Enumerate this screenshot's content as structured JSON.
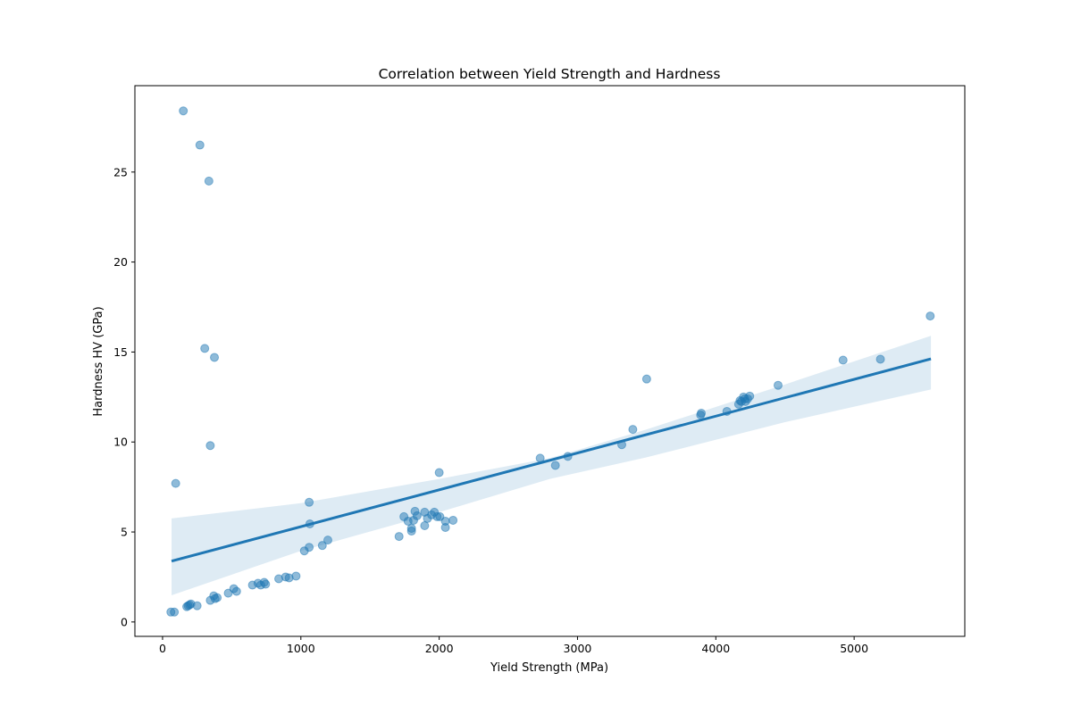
{
  "chart_data": {
    "type": "scatter",
    "title": "Correlation between Yield Strength and Hardness",
    "xlabel": "Yield Strength (MPa)",
    "ylabel": "Hardness HV (GPa)",
    "xlim": [
      -200,
      5800
    ],
    "ylim": [
      -0.8,
      29.8
    ],
    "xticks": [
      0,
      1000,
      2000,
      3000,
      4000,
      5000
    ],
    "yticks": [
      0,
      5,
      10,
      15,
      20,
      25
    ],
    "grid": false,
    "legend": "none",
    "colors": {
      "points": "#1f77b4",
      "points_opacity": 0.5,
      "regression_line": "#1f77b4",
      "confidence_band": "#1f77b4",
      "band_opacity": 0.15
    },
    "points": [
      {
        "x": 60,
        "y": 0.55
      },
      {
        "x": 85,
        "y": 0.55
      },
      {
        "x": 95,
        "y": 7.7
      },
      {
        "x": 150,
        "y": 28.4
      },
      {
        "x": 270,
        "y": 26.5
      },
      {
        "x": 335,
        "y": 24.5
      },
      {
        "x": 305,
        "y": 15.2
      },
      {
        "x": 375,
        "y": 14.7
      },
      {
        "x": 345,
        "y": 9.8
      },
      {
        "x": 175,
        "y": 0.85
      },
      {
        "x": 185,
        "y": 0.9
      },
      {
        "x": 195,
        "y": 0.95
      },
      {
        "x": 205,
        "y": 1.0
      },
      {
        "x": 250,
        "y": 0.9
      },
      {
        "x": 345,
        "y": 1.2
      },
      {
        "x": 370,
        "y": 1.45
      },
      {
        "x": 380,
        "y": 1.3
      },
      {
        "x": 395,
        "y": 1.35
      },
      {
        "x": 475,
        "y": 1.6
      },
      {
        "x": 515,
        "y": 1.85
      },
      {
        "x": 535,
        "y": 1.7
      },
      {
        "x": 650,
        "y": 2.05
      },
      {
        "x": 690,
        "y": 2.15
      },
      {
        "x": 710,
        "y": 2.05
      },
      {
        "x": 735,
        "y": 2.2
      },
      {
        "x": 745,
        "y": 2.1
      },
      {
        "x": 840,
        "y": 2.4
      },
      {
        "x": 890,
        "y": 2.5
      },
      {
        "x": 915,
        "y": 2.45
      },
      {
        "x": 965,
        "y": 2.55
      },
      {
        "x": 1025,
        "y": 3.95
      },
      {
        "x": 1060,
        "y": 4.15
      },
      {
        "x": 1155,
        "y": 4.25
      },
      {
        "x": 1195,
        "y": 4.55
      },
      {
        "x": 1065,
        "y": 5.45
      },
      {
        "x": 1060,
        "y": 6.65
      },
      {
        "x": 1710,
        "y": 4.75
      },
      {
        "x": 1745,
        "y": 5.85
      },
      {
        "x": 1775,
        "y": 5.6
      },
      {
        "x": 1800,
        "y": 5.2
      },
      {
        "x": 1800,
        "y": 5.05
      },
      {
        "x": 1815,
        "y": 5.65
      },
      {
        "x": 1825,
        "y": 6.15
      },
      {
        "x": 1840,
        "y": 5.9
      },
      {
        "x": 1895,
        "y": 5.35
      },
      {
        "x": 1895,
        "y": 6.1
      },
      {
        "x": 1915,
        "y": 5.75
      },
      {
        "x": 1945,
        "y": 5.95
      },
      {
        "x": 1965,
        "y": 6.1
      },
      {
        "x": 1985,
        "y": 5.85
      },
      {
        "x": 2005,
        "y": 5.85
      },
      {
        "x": 2045,
        "y": 5.6
      },
      {
        "x": 2045,
        "y": 5.25
      },
      {
        "x": 2100,
        "y": 5.65
      },
      {
        "x": 2000,
        "y": 8.3
      },
      {
        "x": 2730,
        "y": 9.1
      },
      {
        "x": 2840,
        "y": 8.7
      },
      {
        "x": 2930,
        "y": 9.2
      },
      {
        "x": 3320,
        "y": 9.85
      },
      {
        "x": 3400,
        "y": 10.7
      },
      {
        "x": 3500,
        "y": 13.5
      },
      {
        "x": 3890,
        "y": 11.5
      },
      {
        "x": 3895,
        "y": 11.6
      },
      {
        "x": 4080,
        "y": 11.7
      },
      {
        "x": 4165,
        "y": 12.1
      },
      {
        "x": 4175,
        "y": 12.3
      },
      {
        "x": 4185,
        "y": 12.25
      },
      {
        "x": 4200,
        "y": 12.5
      },
      {
        "x": 4210,
        "y": 12.4
      },
      {
        "x": 4215,
        "y": 12.25
      },
      {
        "x": 4230,
        "y": 12.4
      },
      {
        "x": 4245,
        "y": 12.55
      },
      {
        "x": 4450,
        "y": 13.15
      },
      {
        "x": 4920,
        "y": 14.55
      },
      {
        "x": 5190,
        "y": 14.6
      },
      {
        "x": 5550,
        "y": 17.0
      }
    ],
    "regression": {
      "x_start": 65,
      "y_start": 3.38,
      "x_end": 5555,
      "y_end": 14.62
    },
    "confidence_band": [
      {
        "x": 65,
        "upper": 5.75,
        "lower": 1.48
      },
      {
        "x": 1000,
        "upper": 6.6,
        "lower": 3.95
      },
      {
        "x": 2000,
        "upper": 7.95,
        "lower": 6.1
      },
      {
        "x": 2800,
        "upper": 9.1,
        "lower": 7.95
      },
      {
        "x": 3500,
        "upper": 10.7,
        "lower": 9.15
      },
      {
        "x": 4500,
        "upper": 13.2,
        "lower": 11.1
      },
      {
        "x": 5555,
        "upper": 15.9,
        "lower": 12.92
      }
    ]
  }
}
